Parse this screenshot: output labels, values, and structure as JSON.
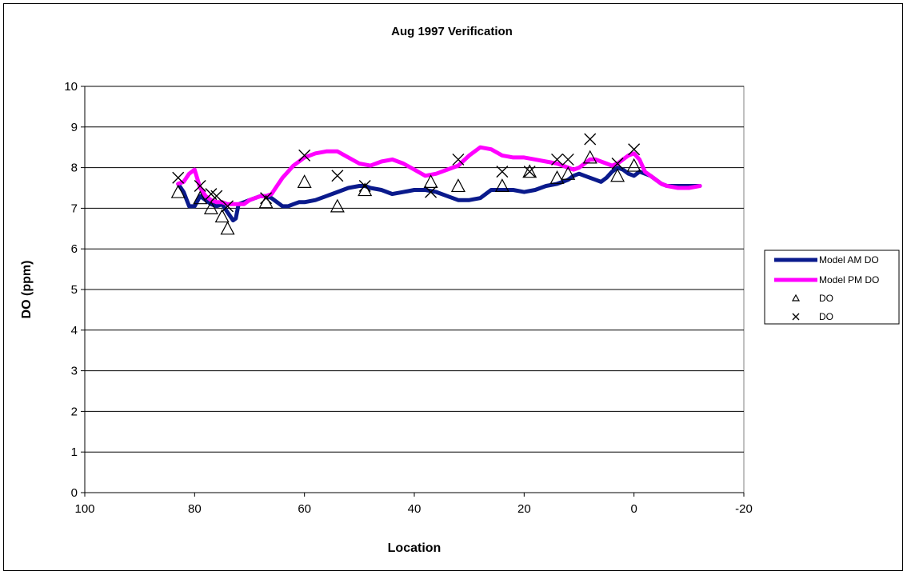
{
  "chart_data": {
    "type": "line",
    "title": "Aug 1997 Verification",
    "xlabel": "Location",
    "ylabel": "DO (ppm)",
    "xlim": [
      100,
      -20
    ],
    "ylim": [
      0,
      10
    ],
    "x_ticks": [
      "100",
      "80",
      "60",
      "40",
      "20",
      "0",
      "-20"
    ],
    "y_ticks": [
      "0",
      "1",
      "2",
      "3",
      "4",
      "5",
      "6",
      "7",
      "8",
      "9",
      "10"
    ],
    "grid": "horizontal",
    "legend_position": "right",
    "series": [
      {
        "name": "Model AM DO",
        "kind": "line",
        "color": "#0a1a8c",
        "x": [
          83,
          82,
          81,
          80,
          79,
          78,
          77,
          76,
          75,
          74,
          73.5,
          73,
          72.5,
          72,
          71,
          70,
          68,
          67,
          66,
          65,
          64,
          63,
          62,
          61,
          60,
          58,
          56,
          54,
          52,
          50,
          49,
          48,
          46,
          44,
          42,
          40,
          38,
          36,
          34,
          32,
          30,
          28,
          26,
          24,
          23,
          22,
          20,
          18,
          16,
          14,
          13,
          12,
          11,
          10,
          9,
          8,
          7,
          6,
          5,
          4,
          3,
          2,
          1,
          0,
          -1,
          -2,
          -3,
          -4,
          -5,
          -6,
          -8,
          -10,
          -12
        ],
        "y": [
          7.6,
          7.4,
          7.05,
          7.05,
          7.3,
          7.2,
          7.1,
          7.05,
          7.1,
          6.9,
          6.8,
          6.7,
          6.75,
          7.1,
          7.15,
          7.2,
          7.3,
          7.3,
          7.25,
          7.15,
          7.05,
          7.05,
          7.1,
          7.15,
          7.15,
          7.2,
          7.3,
          7.4,
          7.5,
          7.55,
          7.55,
          7.5,
          7.45,
          7.35,
          7.4,
          7.45,
          7.45,
          7.4,
          7.3,
          7.2,
          7.2,
          7.25,
          7.45,
          7.45,
          7.45,
          7.45,
          7.4,
          7.45,
          7.55,
          7.6,
          7.65,
          7.7,
          7.8,
          7.85,
          7.8,
          7.75,
          7.7,
          7.65,
          7.75,
          7.9,
          8.0,
          7.95,
          7.85,
          7.8,
          7.9,
          7.85,
          7.8,
          7.7,
          7.6,
          7.55,
          7.55,
          7.55,
          7.55
        ]
      },
      {
        "name": "Model PM DO",
        "kind": "line",
        "color": "#ff00ff",
        "x": [
          83,
          82,
          81,
          80,
          79,
          78,
          77,
          76,
          75,
          74,
          73,
          72,
          71,
          70,
          69,
          68,
          67,
          66,
          65,
          64,
          63,
          62,
          61,
          60,
          58,
          56,
          54,
          52,
          50,
          48,
          46,
          44,
          42,
          40,
          38,
          36,
          34,
          32,
          30,
          28,
          26,
          24,
          22,
          20,
          18,
          16,
          14,
          12,
          11,
          10,
          9,
          8,
          7,
          6,
          5,
          4,
          3,
          2,
          1,
          0,
          -1,
          -2,
          -3,
          -4,
          -5,
          -6,
          -8,
          -10,
          -12
        ],
        "y": [
          7.6,
          7.65,
          7.85,
          7.95,
          7.5,
          7.3,
          7.2,
          7.15,
          7.15,
          7.1,
          7.1,
          7.1,
          7.1,
          7.2,
          7.25,
          7.3,
          7.3,
          7.35,
          7.55,
          7.75,
          7.9,
          8.05,
          8.15,
          8.25,
          8.35,
          8.4,
          8.4,
          8.25,
          8.1,
          8.05,
          8.15,
          8.2,
          8.1,
          7.95,
          7.8,
          7.85,
          7.95,
          8.05,
          8.3,
          8.5,
          8.45,
          8.3,
          8.25,
          8.25,
          8.2,
          8.15,
          8.1,
          8.0,
          7.95,
          8.0,
          8.1,
          8.2,
          8.2,
          8.15,
          8.1,
          8.05,
          8.1,
          8.2,
          8.3,
          8.35,
          8.2,
          7.9,
          7.8,
          7.7,
          7.6,
          7.55,
          7.5,
          7.5,
          7.55
        ]
      },
      {
        "name": "DO",
        "kind": "scatter",
        "marker": "triangle",
        "x": [
          83,
          79,
          77,
          75,
          74,
          67,
          60,
          54,
          49,
          37,
          32,
          24,
          19,
          14,
          12,
          8,
          3,
          0
        ],
        "y": [
          7.4,
          7.25,
          7.0,
          6.8,
          6.5,
          7.15,
          7.65,
          7.05,
          7.45,
          7.65,
          7.55,
          7.55,
          7.9,
          7.75,
          7.85,
          8.25,
          7.8,
          8.05
        ]
      },
      {
        "name": "DO",
        "kind": "scatter",
        "marker": "x",
        "x": [
          83,
          79,
          77,
          76,
          74,
          67,
          60,
          54,
          49,
          37,
          32,
          24,
          19,
          14,
          12,
          8,
          3,
          0
        ],
        "y": [
          7.75,
          7.55,
          7.35,
          7.3,
          7.05,
          7.25,
          8.3,
          7.8,
          7.55,
          7.4,
          8.2,
          7.9,
          7.9,
          8.2,
          8.2,
          8.7,
          8.1,
          8.45
        ]
      }
    ]
  }
}
